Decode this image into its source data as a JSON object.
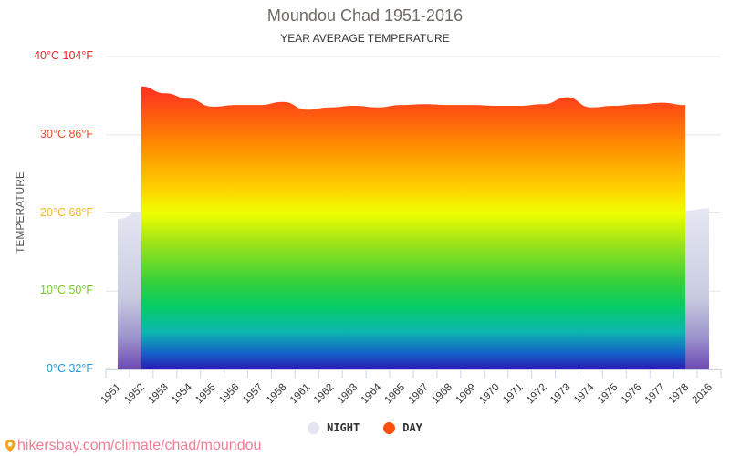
{
  "header": {
    "title": "Moundou Chad 1951-2016",
    "subtitle": "YEAR AVERAGE TEMPERATURE"
  },
  "y_axis": {
    "label": "TEMPERATURE",
    "ticks": [
      {
        "label": "40°C 104°F",
        "value": 40,
        "color": "#f0232d"
      },
      {
        "label": "30°C 86°F",
        "value": 30,
        "color": "#f2492c"
      },
      {
        "label": "20°C 68°F",
        "value": 20,
        "color": "#f5b919"
      },
      {
        "label": "10°C 50°F",
        "value": 10,
        "color": "#6fce1c"
      },
      {
        "label": "0°C 32°F",
        "value": 0,
        "color": "#2596d8"
      }
    ]
  },
  "legend": {
    "items": [
      {
        "label": "NIGHT",
        "color": "#e3e5ef"
      },
      {
        "label": "DAY",
        "color": "#ff4e0e"
      }
    ]
  },
  "footer": {
    "link_text": "hikersbay.com/climate/chad/moundou",
    "icon": "map-pin-icon"
  },
  "chart_data": {
    "type": "area",
    "title": "Moundou Chad 1951-2016",
    "subtitle": "YEAR AVERAGE TEMPERATURE",
    "xlabel": "",
    "ylabel": "TEMPERATURE",
    "ylim": [
      0,
      40
    ],
    "grid": true,
    "legend_position": "bottom",
    "categories": [
      "1951",
      "1952",
      "1953",
      "1954",
      "1955",
      "1956",
      "1957",
      "1958",
      "1961",
      "1962",
      "1963",
      "1964",
      "1965",
      "1967",
      "1968",
      "1969",
      "1970",
      "1971",
      "1972",
      "1973",
      "1974",
      "1975",
      "1976",
      "1977",
      "1978",
      "2016"
    ],
    "series": [
      {
        "name": "NIGHT",
        "color": "#e3e5ef",
        "values": [
          19.2,
          20.2,
          20.3,
          20.5,
          20.0,
          20.1,
          20.1,
          20.5,
          20.0,
          20.3,
          20.2,
          20.1,
          19.8,
          20.0,
          20.0,
          20.3,
          20.0,
          19.9,
          20.0,
          20.3,
          19.9,
          20.1,
          20.1,
          20.1,
          20.3,
          20.6
        ]
      },
      {
        "name": "DAY",
        "color": "#ff4e0e",
        "values": [
          null,
          36.2,
          35.3,
          34.6,
          33.6,
          33.8,
          33.8,
          34.2,
          33.2,
          33.5,
          33.7,
          33.5,
          33.8,
          33.9,
          33.8,
          33.8,
          33.7,
          33.7,
          33.9,
          34.8,
          33.5,
          33.7,
          33.9,
          34.1,
          33.8,
          null
        ]
      }
    ]
  }
}
